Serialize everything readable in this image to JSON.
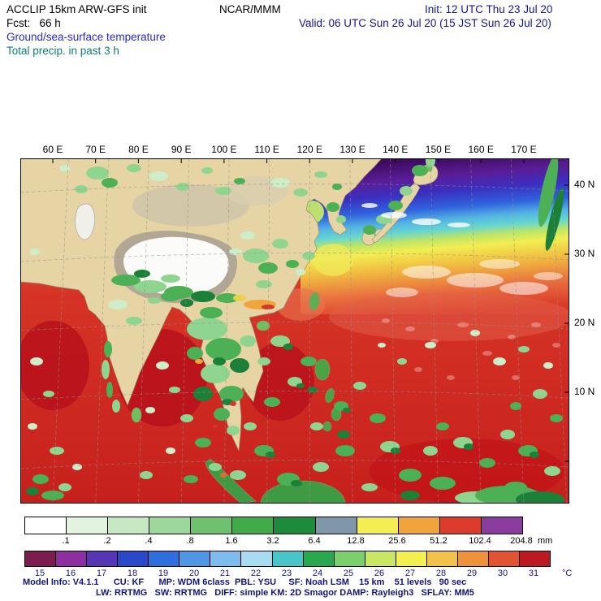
{
  "header": {
    "model": "ACCLIP 15km ARW-GFS init",
    "center": "NCAR/MMM",
    "init": "Init: 12 UTC Thu 23 Jul 20",
    "fcst": "Fcst:   66 h",
    "valid": "Valid: 06 UTC Sun 26 Jul 20 (15 JST Sun 26 Jul 20)",
    "field_temp": "Ground/sea-surface temperature",
    "field_precip": "Total precip. in past 3 h"
  },
  "map": {
    "lon_labels": [
      "60 E",
      "70 E",
      "80 E",
      "90 E",
      "100 E",
      "110 E",
      "120 E",
      "130 E",
      "140 E",
      "150 E",
      "160 E",
      "170 E"
    ],
    "lat_labels": [
      "40 N",
      "30 N",
      "20 N",
      "10 N"
    ]
  },
  "colorbars": {
    "precip": {
      "unit": "mm",
      "labels": [
        ".1",
        ".2",
        ".4",
        ".8",
        "1.6",
        "3.2",
        "6.4",
        "12.8",
        "25.6",
        "51.2",
        "102.4",
        "204.8"
      ],
      "colors": [
        "#ffffff",
        "#e3f4de",
        "#c6e9c3",
        "#9dd79c",
        "#6fc170",
        "#41ab47",
        "#1d8a3c",
        "#7e97a9",
        "#f4ee53",
        "#f1a43b",
        "#dd3b2b",
        "#8a3d9e"
      ]
    },
    "temp": {
      "unit": "°C",
      "labels": [
        "15",
        "16",
        "17",
        "18",
        "19",
        "20",
        "21",
        "22",
        "23",
        "24",
        "25",
        "26",
        "27",
        "28",
        "29",
        "30",
        "31"
      ],
      "colors": [
        "#7d1d4f",
        "#8d2f9e",
        "#5736b5",
        "#2b48c9",
        "#2f6fdc",
        "#4f97e6",
        "#7fbcee",
        "#a9dbf2",
        "#48c5c9",
        "#2aa84f",
        "#7ccf6d",
        "#c9e764",
        "#f3ef4f",
        "#f2c24a",
        "#ef923c",
        "#e05333",
        "#bb1a24"
      ]
    }
  },
  "footer": {
    "line1": "Model Info: V4.1.1      CU: KF      MP: WDM 6class  PBL: YSU     SF: Noah LSM    15 km    51 levels   90 sec",
    "line2": "LW: RRTMG   SW: RRTMG   DIFF: simple KM: 2D Smagor DAMP: Rayleigh3   SFLAY: MM5"
  }
}
